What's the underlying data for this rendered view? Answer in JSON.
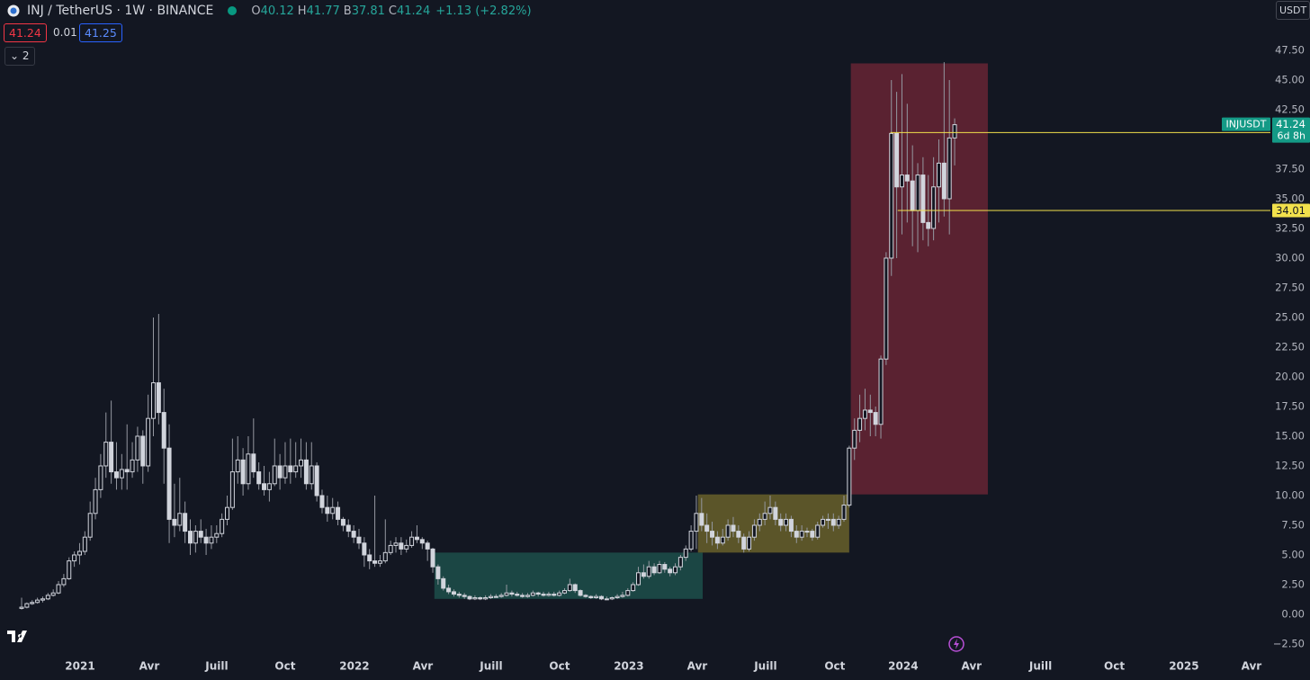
{
  "header": {
    "symbol": "INJ / TetherUS · 1W · BINANCE",
    "ohlc": [
      {
        "label": "O",
        "value": "40.12"
      },
      {
        "label": "H",
        "value": "41.77"
      },
      {
        "label": "B",
        "value": "37.81"
      },
      {
        "label": "C",
        "value": "41.24"
      }
    ],
    "change": "+1.13 (+2.82%)",
    "bid": "41.24",
    "spread": "0.01",
    "ask": "41.25",
    "indicators": "2",
    "currency": "USDT"
  },
  "chart_data": {
    "type": "candlestick",
    "up_color": "#d1d4dc",
    "down_color": "#d1d4dc",
    "xlim": [
      -4.1,
      236.9
    ],
    "ylim": [
      -3.41,
      51.74
    ],
    "xticks": [
      {
        "value": 11.09,
        "label": "2021"
      },
      {
        "value": 24.23,
        "label": "Avr"
      },
      {
        "value": 37.03,
        "label": "Juill"
      },
      {
        "value": 50.0,
        "label": "Oct"
      },
      {
        "value": 63.14,
        "label": "2022"
      },
      {
        "value": 76.1,
        "label": "Avr"
      },
      {
        "value": 89.08,
        "label": "Juill"
      },
      {
        "value": 102.05,
        "label": "Oct"
      },
      {
        "value": 115.19,
        "label": "2023"
      },
      {
        "value": 128.16,
        "label": "Avr"
      },
      {
        "value": 141.13,
        "label": "Juill"
      },
      {
        "value": 154.27,
        "label": "Oct"
      },
      {
        "value": 167.24,
        "label": "2024"
      },
      {
        "value": 180.2,
        "label": "Avr"
      },
      {
        "value": 193.3,
        "label": "Juill"
      },
      {
        "value": 207.3,
        "label": "Oct"
      },
      {
        "value": 220.5,
        "label": "2025"
      },
      {
        "value": 233.3,
        "label": "Avr"
      }
    ],
    "yticks": [
      {
        "value": 47.5,
        "label": "47.50"
      },
      {
        "value": 45,
        "label": "45.00"
      },
      {
        "value": 42.5,
        "label": "42.50"
      },
      {
        "value": 40,
        "label": "40.00"
      },
      {
        "value": 37.5,
        "label": "37.50"
      },
      {
        "value": 35,
        "label": "35.00"
      },
      {
        "value": 32.5,
        "label": "32.50"
      },
      {
        "value": 30,
        "label": "30.00"
      },
      {
        "value": 27.5,
        "label": "27.50"
      },
      {
        "value": 25,
        "label": "25.00"
      },
      {
        "value": 22.5,
        "label": "22.50"
      },
      {
        "value": 20,
        "label": "20.00"
      },
      {
        "value": 17.5,
        "label": "17.50"
      },
      {
        "value": 15,
        "label": "15.00"
      },
      {
        "value": 12.5,
        "label": "12.50"
      },
      {
        "value": 10,
        "label": "10.00"
      },
      {
        "value": 7.5,
        "label": "7.50"
      },
      {
        "value": 5,
        "label": "5.00"
      },
      {
        "value": 2.5,
        "label": "2.50"
      },
      {
        "value": 0,
        "label": "0.00"
      },
      {
        "value": -2.5,
        "label": "−2.50"
      }
    ],
    "zones": [
      {
        "x": [
          78.3,
          129.2
        ],
        "y": [
          1.3,
          5.2
        ],
        "color": "#1b4644"
      },
      {
        "x": [
          128.3,
          157.0
        ],
        "y": [
          5.2,
          10.1
        ],
        "color": "#5b5529"
      },
      {
        "x": [
          157.3,
          183.3
        ],
        "y": [
          10.1,
          46.4
        ],
        "color": "#5a2231"
      }
    ],
    "levels": [
      {
        "value": 40.58,
        "from": 164.8,
        "color": "#f2e14c"
      },
      {
        "value": 34.01,
        "from": 166.2,
        "color": "#f2e14c"
      }
    ],
    "price_tag": {
      "symbol": "INJUSDT",
      "price": "41.24",
      "countdown": "6d 8h",
      "color": "#149a86"
    },
    "ohlc": [
      [
        0.5,
        1.4,
        0.4,
        0.6
      ],
      [
        0.6,
        1.0,
        0.5,
        0.9
      ],
      [
        0.9,
        1.2,
        0.8,
        1.0
      ],
      [
        1.0,
        1.4,
        0.9,
        1.2
      ],
      [
        1.2,
        1.5,
        1.0,
        1.3
      ],
      [
        1.3,
        1.8,
        1.2,
        1.6
      ],
      [
        1.6,
        2.1,
        1.5,
        1.8
      ],
      [
        1.8,
        2.8,
        1.7,
        2.5
      ],
      [
        2.5,
        3.4,
        2.3,
        3.0
      ],
      [
        3.0,
        4.8,
        2.9,
        4.5
      ],
      [
        4.5,
        5.3,
        4.0,
        5.0
      ],
      [
        5.0,
        6.0,
        4.2,
        5.3
      ],
      [
        5.3,
        7.0,
        5.0,
        6.5
      ],
      [
        6.5,
        9.5,
        6.2,
        8.5
      ],
      [
        8.5,
        11.5,
        8.0,
        10.5
      ],
      [
        10.5,
        13.5,
        9.8,
        12.5
      ],
      [
        12.5,
        17.0,
        11.5,
        14.5
      ],
      [
        14.5,
        18.0,
        11.0,
        12.0
      ],
      [
        12.0,
        14.5,
        10.5,
        11.5
      ],
      [
        11.5,
        13.5,
        10.5,
        12.2
      ],
      [
        12.2,
        16.0,
        10.5,
        12.0
      ],
      [
        12.0,
        14.5,
        11.5,
        13.0
      ],
      [
        13.0,
        15.8,
        12.0,
        15.0
      ],
      [
        15.0,
        15.5,
        11.0,
        12.5
      ],
      [
        12.5,
        18.5,
        12.0,
        16.5
      ],
      [
        16.5,
        25.0,
        15.0,
        19.5
      ],
      [
        19.5,
        25.3,
        16.0,
        17.0
      ],
      [
        17.0,
        19.0,
        11.0,
        14.0
      ],
      [
        14.0,
        16.0,
        6.0,
        8.0
      ],
      [
        8.0,
        11.0,
        6.5,
        7.5
      ],
      [
        7.5,
        11.5,
        7.0,
        8.5
      ],
      [
        8.5,
        9.5,
        6.0,
        7.0
      ],
      [
        7.0,
        8.0,
        5.0,
        6.0
      ],
      [
        6.0,
        7.5,
        5.2,
        7.0
      ],
      [
        7.0,
        8.0,
        6.0,
        6.5
      ],
      [
        6.5,
        7.2,
        5.0,
        6.0
      ],
      [
        6.0,
        7.5,
        5.5,
        6.5
      ],
      [
        6.5,
        7.5,
        6.0,
        6.8
      ],
      [
        6.8,
        8.5,
        6.5,
        8.0
      ],
      [
        8.0,
        10.0,
        7.5,
        9.0
      ],
      [
        9.0,
        14.8,
        8.8,
        12.0
      ],
      [
        12.0,
        15.0,
        11.0,
        13.0
      ],
      [
        13.0,
        14.0,
        10.0,
        11.0
      ],
      [
        11.0,
        15.0,
        10.5,
        13.5
      ],
      [
        13.5,
        16.5,
        11.5,
        12.0
      ],
      [
        12.0,
        12.8,
        10.5,
        11.0
      ],
      [
        11.0,
        12.5,
        10.0,
        10.5
      ],
      [
        10.5,
        12.0,
        9.5,
        11.0
      ],
      [
        11.0,
        14.8,
        10.8,
        12.5
      ],
      [
        12.5,
        13.5,
        10.5,
        11.5
      ],
      [
        11.5,
        14.5,
        11.0,
        12.5
      ],
      [
        12.5,
        14.8,
        11.0,
        12.0
      ],
      [
        12.0,
        14.5,
        11.5,
        12.5
      ],
      [
        12.5,
        14.8,
        11.5,
        13.0
      ],
      [
        13.0,
        14.5,
        10.5,
        11.0
      ],
      [
        11.0,
        14.5,
        10.5,
        12.5
      ],
      [
        12.5,
        12.8,
        9.5,
        10.0
      ],
      [
        10.0,
        10.5,
        8.5,
        9.0
      ],
      [
        9.0,
        10.0,
        7.8,
        8.5
      ],
      [
        8.5,
        9.8,
        8.0,
        9.0
      ],
      [
        9.0,
        9.5,
        7.5,
        8.0
      ],
      [
        8.0,
        8.2,
        7.0,
        7.5
      ],
      [
        7.5,
        8.0,
        6.5,
        7.0
      ],
      [
        7.0,
        7.5,
        6.0,
        6.5
      ],
      [
        6.5,
        7.2,
        5.5,
        6.0
      ],
      [
        6.0,
        6.5,
        4.0,
        5.0
      ],
      [
        5.0,
        5.5,
        3.8,
        4.5
      ],
      [
        4.5,
        10.0,
        4.0,
        4.3
      ],
      [
        4.3,
        5.0,
        4.0,
        4.5
      ],
      [
        4.5,
        8.0,
        4.3,
        5.2
      ],
      [
        5.2,
        6.2,
        5.0,
        5.8
      ],
      [
        5.8,
        6.5,
        5.2,
        6.0
      ],
      [
        6.0,
        6.5,
        5.0,
        5.5
      ],
      [
        5.5,
        6.3,
        5.2,
        5.8
      ],
      [
        5.8,
        7.0,
        5.6,
        6.5
      ],
      [
        6.5,
        7.5,
        6.0,
        6.3
      ],
      [
        6.3,
        6.5,
        5.5,
        6.0
      ],
      [
        6.0,
        6.2,
        4.5,
        5.5
      ],
      [
        5.5,
        5.6,
        3.5,
        4.0
      ],
      [
        4.0,
        4.2,
        2.5,
        3.0
      ],
      [
        3.0,
        3.2,
        2.0,
        2.2
      ],
      [
        2.2,
        2.5,
        1.7,
        1.9
      ],
      [
        1.9,
        2.1,
        1.5,
        1.7
      ],
      [
        1.7,
        1.9,
        1.4,
        1.6
      ],
      [
        1.6,
        1.8,
        1.3,
        1.5
      ],
      [
        1.5,
        1.6,
        1.2,
        1.3
      ],
      [
        1.3,
        1.6,
        1.2,
        1.4
      ],
      [
        1.4,
        1.5,
        1.2,
        1.3
      ],
      [
        1.3,
        1.6,
        1.2,
        1.4
      ],
      [
        1.4,
        1.7,
        1.3,
        1.5
      ],
      [
        1.5,
        1.7,
        1.4,
        1.5
      ],
      [
        1.5,
        1.8,
        1.4,
        1.6
      ],
      [
        1.6,
        2.5,
        1.5,
        1.8
      ],
      [
        1.8,
        2.0,
        1.5,
        1.7
      ],
      [
        1.7,
        1.9,
        1.5,
        1.6
      ],
      [
        1.6,
        1.8,
        1.4,
        1.5
      ],
      [
        1.5,
        1.8,
        1.4,
        1.6
      ],
      [
        1.6,
        2.0,
        1.5,
        1.8
      ],
      [
        1.8,
        1.9,
        1.5,
        1.7
      ],
      [
        1.7,
        1.9,
        1.5,
        1.6
      ],
      [
        1.6,
        1.9,
        1.5,
        1.7
      ],
      [
        1.7,
        1.9,
        1.5,
        1.6
      ],
      [
        1.6,
        2.0,
        1.5,
        1.8
      ],
      [
        1.8,
        2.2,
        1.7,
        2.0
      ],
      [
        2.0,
        3.0,
        1.9,
        2.5
      ],
      [
        2.5,
        2.6,
        1.8,
        2.0
      ],
      [
        2.0,
        2.1,
        1.5,
        1.6
      ],
      [
        1.6,
        1.7,
        1.4,
        1.5
      ],
      [
        1.5,
        1.6,
        1.3,
        1.4
      ],
      [
        1.4,
        1.7,
        1.3,
        1.5
      ],
      [
        1.5,
        1.6,
        1.2,
        1.3
      ],
      [
        1.3,
        1.5,
        1.2,
        1.3
      ],
      [
        1.3,
        1.5,
        1.2,
        1.4
      ],
      [
        1.4,
        1.7,
        1.3,
        1.5
      ],
      [
        1.5,
        1.9,
        1.4,
        1.6
      ],
      [
        1.6,
        2.2,
        1.5,
        2.0
      ],
      [
        2.0,
        2.7,
        1.9,
        2.5
      ],
      [
        2.5,
        4.0,
        2.4,
        3.5
      ],
      [
        3.5,
        4.2,
        3.0,
        3.2
      ],
      [
        3.2,
        4.5,
        3.0,
        4.0
      ],
      [
        4.0,
        4.3,
        3.3,
        3.5
      ],
      [
        3.5,
        4.5,
        3.4,
        4.2
      ],
      [
        4.2,
        4.4,
        3.5,
        3.8
      ],
      [
        3.8,
        4.0,
        3.2,
        3.5
      ],
      [
        3.5,
        4.3,
        3.3,
        4.0
      ],
      [
        4.0,
        5.0,
        3.7,
        4.8
      ],
      [
        4.8,
        5.8,
        4.5,
        5.5
      ],
      [
        5.5,
        7.5,
        5.3,
        7.0
      ],
      [
        7.0,
        10.0,
        5.5,
        8.5
      ],
      [
        8.5,
        9.8,
        7.0,
        7.5
      ],
      [
        7.5,
        8.5,
        6.0,
        7.0
      ],
      [
        7.0,
        7.8,
        5.8,
        6.5
      ],
      [
        6.5,
        7.0,
        5.5,
        6.0
      ],
      [
        6.0,
        7.2,
        5.8,
        6.5
      ],
      [
        6.5,
        8.0,
        6.2,
        7.5
      ],
      [
        7.5,
        8.2,
        6.5,
        7.0
      ],
      [
        7.0,
        7.5,
        6.0,
        6.5
      ],
      [
        6.5,
        6.8,
        5.2,
        5.5
      ],
      [
        5.5,
        7.0,
        5.3,
        6.5
      ],
      [
        6.5,
        8.0,
        6.2,
        7.5
      ],
      [
        7.5,
        8.5,
        7.0,
        8.0
      ],
      [
        8.0,
        9.5,
        7.5,
        8.5
      ],
      [
        8.5,
        10.0,
        8.0,
        9.0
      ],
      [
        9.0,
        9.5,
        7.5,
        8.0
      ],
      [
        8.0,
        8.5,
        7.0,
        7.5
      ],
      [
        7.5,
        8.5,
        7.0,
        8.0
      ],
      [
        8.0,
        8.3,
        6.5,
        7.0
      ],
      [
        7.0,
        7.5,
        6.0,
        6.5
      ],
      [
        6.5,
        7.5,
        6.2,
        7.0
      ],
      [
        7.0,
        7.3,
        6.5,
        7.0
      ],
      [
        7.0,
        7.2,
        6.2,
        6.5
      ],
      [
        6.5,
        7.8,
        6.3,
        7.5
      ],
      [
        7.5,
        8.3,
        7.3,
        8.0
      ],
      [
        8.0,
        8.5,
        7.2,
        8.0
      ],
      [
        8.0,
        8.5,
        7.0,
        7.5
      ],
      [
        7.5,
        8.3,
        7.2,
        8.0
      ],
      [
        8.0,
        10.0,
        7.8,
        9.2
      ],
      [
        9.2,
        14.2,
        9.0,
        14.0
      ],
      [
        14.0,
        16.5,
        13.0,
        15.5
      ],
      [
        15.5,
        18.5,
        14.5,
        16.5
      ],
      [
        16.5,
        19.0,
        15.5,
        17.2
      ],
      [
        17.2,
        18.5,
        15.0,
        17.0
      ],
      [
        17.0,
        17.5,
        15.0,
        16.0
      ],
      [
        16.0,
        21.8,
        14.8,
        21.5
      ],
      [
        21.5,
        30.5,
        21.0,
        30.0
      ],
      [
        30.0,
        45.0,
        28.5,
        40.5
      ],
      [
        40.5,
        44.0,
        30.0,
        36.0
      ],
      [
        36.0,
        45.5,
        32.0,
        37.0
      ],
      [
        37.0,
        43.0,
        33.0,
        36.5
      ],
      [
        36.5,
        39.5,
        31.0,
        34.0
      ],
      [
        34.0,
        38.0,
        30.5,
        37.0
      ],
      [
        37.0,
        38.5,
        31.5,
        33.0
      ],
      [
        33.0,
        37.0,
        31.0,
        32.5
      ],
      [
        32.5,
        38.5,
        31.5,
        36.0
      ],
      [
        36.0,
        40.0,
        33.0,
        38.0
      ],
      [
        38.0,
        46.5,
        33.5,
        35.0
      ],
      [
        35.0,
        45.0,
        32.0,
        40.12
      ],
      [
        40.12,
        41.77,
        37.81,
        41.24
      ]
    ]
  }
}
